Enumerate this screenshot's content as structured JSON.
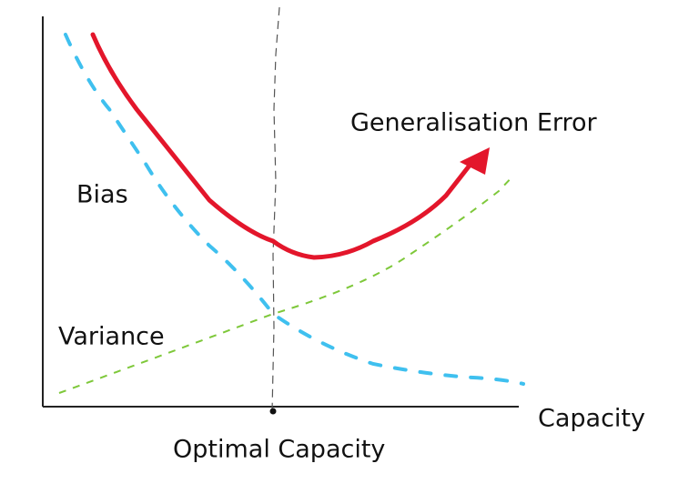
{
  "labels": {
    "curve_error": "Generalisation Error",
    "curve_bias": "Bias",
    "curve_variance": "Variance",
    "x_axis": "Capacity",
    "optimum": "Optimal Capacity"
  }
}
